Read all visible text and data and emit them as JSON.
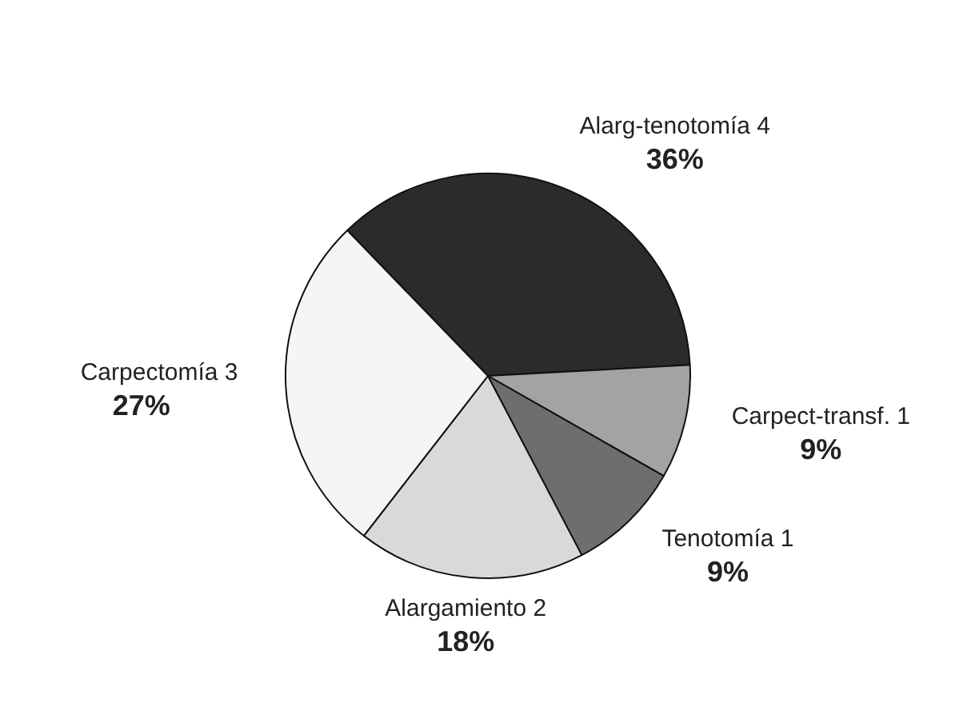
{
  "chart_data": {
    "type": "pie",
    "categories": [
      "Alarg-tenotomía 4",
      "Carpect-transf. 1",
      "Tenotomía 1",
      "Alargamiento 2",
      "Carpectomía 3"
    ],
    "values": [
      36,
      9,
      9,
      18,
      27
    ],
    "colors": [
      "#2b2b2b",
      "#a3a3a3",
      "#6e6e6e",
      "#d9d9d9",
      "#f5f5f5"
    ],
    "value_labels": [
      "36%",
      "9%",
      "9%",
      "18%",
      "27%"
    ],
    "legend": false
  }
}
